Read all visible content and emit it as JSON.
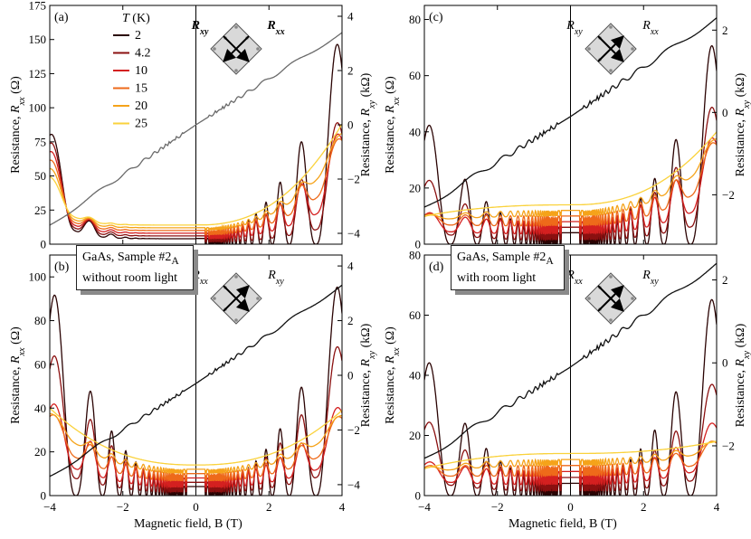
{
  "chart_data": [
    {
      "type": "line",
      "panel_label": "(a)",
      "xlim": [
        -4,
        4
      ],
      "left_axis": {
        "ylim": [
          0,
          175
        ],
        "ticks": [
          0,
          25,
          50,
          75,
          100,
          125,
          150,
          175
        ],
        "label": "Resistance, R_xx (Ω)"
      },
      "right_axis": {
        "ylim": [
          -4.4,
          4.4
        ],
        "ticks": [
          -4,
          -2,
          0,
          2,
          4
        ],
        "label": "Resistance, R_xy (kΩ)"
      },
      "legend": {
        "title": "T (K)",
        "entries": [
          "2",
          "4.2",
          "10",
          "15",
          "20",
          "25"
        ],
        "placement": "top-left"
      },
      "inset": {
        "labels": [
          "R_xy",
          "R_xx"
        ],
        "configuration": "R_xx measured along diagonal"
      },
      "series": [
        {
          "name": "2",
          "peak": [
            0,
            160
          ],
          "background": 8,
          "color": "#2a0303"
        },
        {
          "name": "4.2",
          "peak": [
            0,
            105
          ],
          "background": 9,
          "color": "#8b1010"
        },
        {
          "name": "10",
          "peak": [
            0,
            98
          ],
          "background": 10,
          "color": "#d42020"
        },
        {
          "name": "15",
          "peak": [
            0,
            92
          ],
          "background": 12,
          "color": "#ee6a1a"
        },
        {
          "name": "20",
          "peak": [
            0,
            90
          ],
          "background": 13,
          "color": "#f5a31a"
        },
        {
          "name": "25",
          "peak": [
            0,
            88
          ],
          "background": 14,
          "color": "#fad23c"
        }
      ],
      "hall": {
        "x": [
          -4,
          0,
          4
        ],
        "y": [
          -3.7,
          0,
          3.4
        ],
        "color": "#6a6a6a"
      }
    },
    {
      "type": "line",
      "panel_label": "(b)",
      "xlim": [
        -4,
        4
      ],
      "left_axis": {
        "ylim": [
          0,
          110
        ],
        "ticks": [
          0,
          20,
          40,
          60,
          80,
          100
        ],
        "label": "Resistance, R_xx (Ω)"
      },
      "right_axis": {
        "ylim": [
          -4.4,
          4.4
        ],
        "ticks": [
          -4,
          -2,
          0,
          2,
          4
        ],
        "label": "Resistance, R_xy (kΩ)"
      },
      "info_box": [
        "GaAs, Sample #2",
        "A",
        "without room light"
      ],
      "inset": {
        "labels": [
          "R_xx",
          "R_xy"
        ]
      },
      "series": [
        {
          "name": "2",
          "peak": [
            100,
            104
          ],
          "color": "#2a0303"
        },
        {
          "name": "4.2",
          "peak": [
            75,
            80
          ],
          "color": "#8b1010"
        },
        {
          "name": "10",
          "peak": [
            50,
            48
          ],
          "color": "#d42020"
        },
        {
          "name": "15",
          "peak": [
            43,
            42
          ],
          "color": "#ee6a1a"
        },
        {
          "name": "20",
          "peak": [
            41,
            40
          ],
          "color": "#f5a31a"
        },
        {
          "name": "25",
          "peak": [
            40,
            39
          ],
          "color": "#fad23c"
        }
      ],
      "hall": {
        "x": [
          -4,
          0,
          4
        ],
        "y": [
          -3.7,
          -0.3,
          3.3
        ],
        "color": "#111111"
      }
    },
    {
      "type": "line",
      "panel_label": "(c)",
      "xlim": [
        -4,
        4
      ],
      "left_axis": {
        "ylim": [
          0,
          85
        ],
        "ticks": [
          0,
          20,
          40,
          60,
          80
        ],
        "label": "Resistance, R_xx (Ω)"
      },
      "right_axis": {
        "ylim": [
          -3.2,
          2.6
        ],
        "ticks": [
          -2,
          0,
          2
        ],
        "label": "Resistance, R_xy (kΩ)"
      },
      "inset": {
        "labels": [
          "R_xy",
          "R_xx"
        ]
      },
      "series": [
        {
          "name": "2",
          "peak": [
            46,
            77
          ],
          "color": "#2a0303"
        },
        {
          "name": "4.2",
          "peak": [
            26,
            57
          ],
          "color": "#8b1010"
        },
        {
          "name": "10",
          "peak": [
            12,
            45
          ],
          "color": "#d42020"
        },
        {
          "name": "15",
          "peak": [
            11,
            42
          ],
          "color": "#ee6a1a"
        },
        {
          "name": "20",
          "peak": [
            10,
            41
          ],
          "color": "#f5a31a"
        },
        {
          "name": "25",
          "peak": [
            10,
            40
          ],
          "color": "#fad23c"
        }
      ],
      "hall": {
        "x": [
          -4,
          0,
          4
        ],
        "y": [
          -2.3,
          -0.1,
          2.3
        ],
        "color": "#111111"
      }
    },
    {
      "type": "line",
      "panel_label": "(d)",
      "xlim": [
        -4,
        4
      ],
      "left_axis": {
        "ylim": [
          0,
          80
        ],
        "ticks": [
          0,
          20,
          40,
          60,
          80
        ],
        "label": "Resistance, R_xx (Ω)"
      },
      "right_axis": {
        "ylim": [
          -3.2,
          2.6
        ],
        "ticks": [
          -2,
          0,
          2
        ],
        "label": "Resistance, R_xy (kΩ)"
      },
      "info_box": [
        "GaAs, Sample #2",
        "A",
        "with room light"
      ],
      "inset": {
        "labels": [
          "R_xx",
          "R_xy"
        ]
      },
      "series": [
        {
          "name": "2",
          "peak": [
            48,
            71
          ],
          "color": "#2a0303"
        },
        {
          "name": "4.2",
          "peak": [
            28,
            43
          ],
          "color": "#8b1010"
        },
        {
          "name": "10",
          "peak": [
            12,
            28
          ],
          "color": "#d42020"
        },
        {
          "name": "15",
          "peak": [
            10,
            20
          ],
          "color": "#ee6a1a"
        },
        {
          "name": "20",
          "peak": [
            9,
            19
          ],
          "color": "#f5a31a"
        },
        {
          "name": "25",
          "peak": [
            9,
            18
          ],
          "color": "#fad23c"
        }
      ],
      "hall": {
        "x": [
          -4,
          0,
          4
        ],
        "y": [
          -2.3,
          -0.1,
          2.4
        ],
        "color": "#111111"
      }
    }
  ],
  "x_axis": {
    "ticks": [
      -4,
      -2,
      0,
      2,
      4
    ],
    "label": "Magnetic field, B (T)"
  }
}
